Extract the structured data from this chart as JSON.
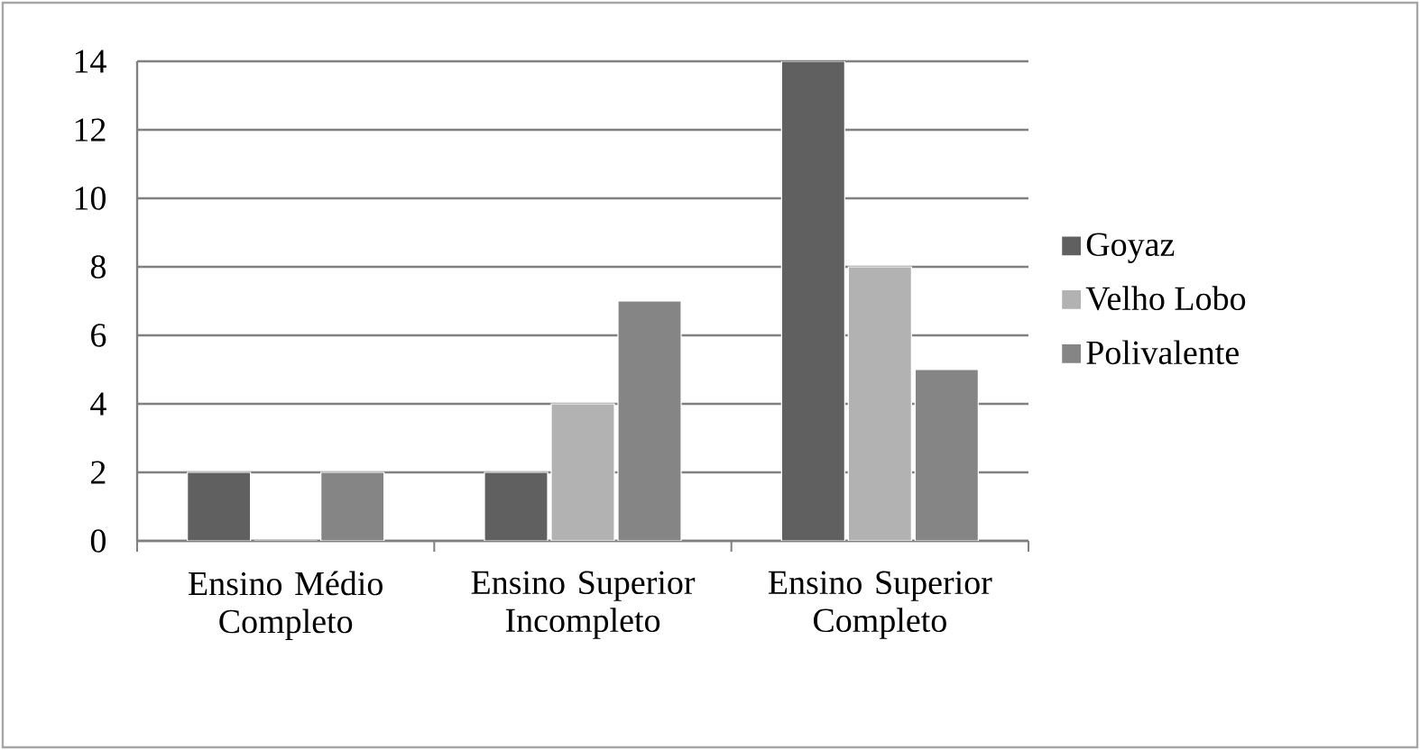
{
  "chart_data": {
    "type": "bar",
    "categories": [
      "Ensino Médio Completo",
      "Ensino Superior Incompleto",
      "Ensino Superior Completo"
    ],
    "series": [
      {
        "name": "Goyaz",
        "color": "#606060",
        "values": [
          2,
          2,
          14
        ]
      },
      {
        "name": "Velho Lobo",
        "color": "#b2b2b2",
        "values": [
          0,
          4,
          8
        ]
      },
      {
        "name": "Polivalente",
        "color": "#858585",
        "values": [
          2,
          7,
          5
        ]
      }
    ],
    "ylim": [
      0,
      14
    ],
    "yticks": [
      0,
      2,
      4,
      6,
      8,
      10,
      12,
      14
    ],
    "grid": "y",
    "legend": "right"
  }
}
